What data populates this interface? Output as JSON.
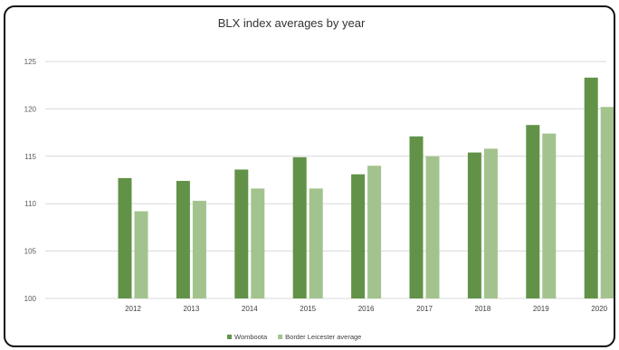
{
  "chart_data": {
    "type": "bar",
    "title": "BLX index averages by year",
    "xlabel": "",
    "ylabel": "",
    "categories": [
      "2012",
      "2013",
      "2014",
      "2015",
      "2016",
      "2017",
      "2018",
      "2019",
      "2020"
    ],
    "series": [
      {
        "name": "Womboota",
        "color": "#629247",
        "values": [
          112.7,
          112.4,
          113.6,
          114.9,
          113.1,
          117.1,
          115.4,
          118.3,
          123.3
        ]
      },
      {
        "name": "Border Leicester average",
        "color": "#a2c38d",
        "values": [
          109.2,
          110.3,
          111.6,
          111.6,
          114.0,
          115.0,
          115.8,
          117.4,
          120.2
        ]
      }
    ],
    "ylim": [
      100,
      125
    ],
    "yticks": [
      100,
      105,
      110,
      115,
      120,
      125
    ],
    "grid": true,
    "legend": "bottom"
  }
}
